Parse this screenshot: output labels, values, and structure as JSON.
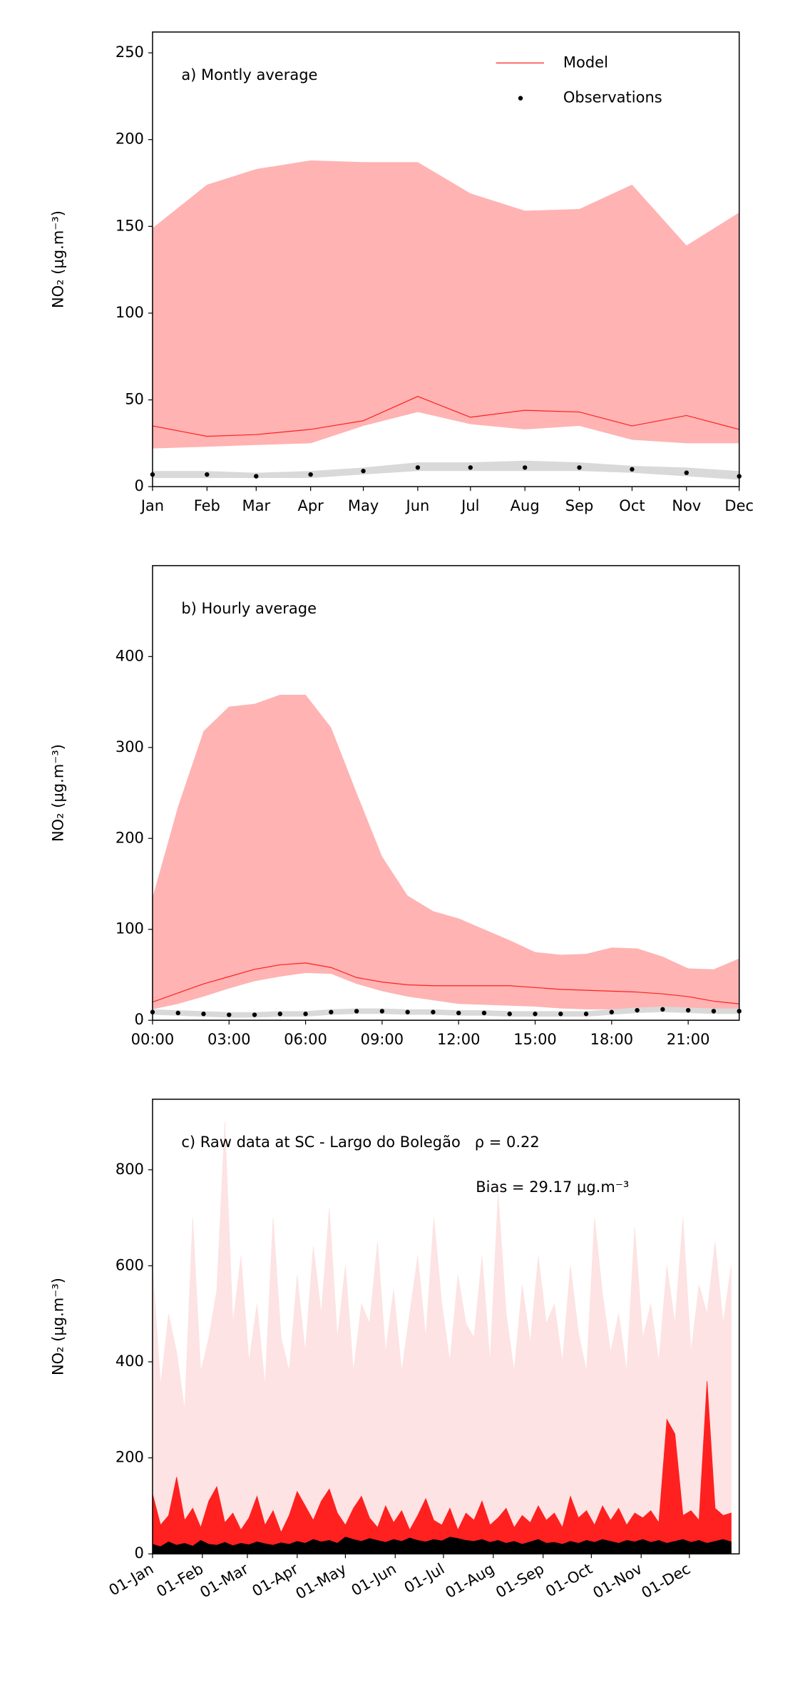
{
  "chart_data": [
    {
      "type": "line",
      "annotations": [
        "a) Montly average"
      ],
      "ylabel": "NO₂ (μg.m⁻³)",
      "legend": "upper right",
      "x": [
        0,
        31,
        59,
        90,
        120,
        151,
        181,
        212,
        243,
        273,
        304,
        334
      ],
      "xlim": [
        0,
        334
      ],
      "xticks": [
        {
          "value": 0,
          "label": "Jan"
        },
        {
          "value": 31,
          "label": "Feb"
        },
        {
          "value": 59,
          "label": "Mar"
        },
        {
          "value": 90,
          "label": "Apr"
        },
        {
          "value": 120,
          "label": "May"
        },
        {
          "value": 151,
          "label": "Jun"
        },
        {
          "value": 181,
          "label": "Jul"
        },
        {
          "value": 212,
          "label": "Aug"
        },
        {
          "value": 243,
          "label": "Sep"
        },
        {
          "value": 273,
          "label": "Oct"
        },
        {
          "value": 304,
          "label": "Nov"
        },
        {
          "value": 334,
          "label": "Dec"
        }
      ],
      "ylim": [
        0,
        262
      ],
      "yticks": [
        0,
        50,
        100,
        150,
        200,
        250
      ],
      "grid": false,
      "series": [
        {
          "name": "Model",
          "color": "#ff2020",
          "style": "line",
          "band_color": "#ffb3b3",
          "values": [
            35,
            29,
            30,
            33,
            38,
            52,
            40,
            44,
            43,
            35,
            41,
            33
          ],
          "upper": [
            149,
            174,
            183,
            188,
            187,
            187,
            169,
            159,
            160,
            174,
            139,
            158
          ],
          "lower": [
            22,
            23,
            24,
            25,
            35,
            43,
            36,
            33,
            35,
            27,
            25,
            25
          ]
        },
        {
          "name": "Observations",
          "color": "#000000",
          "style": "markers",
          "band_color": "#d9d9d9",
          "values": [
            7,
            7,
            6,
            7,
            9,
            11,
            11,
            11,
            11,
            10,
            8,
            6
          ],
          "upper": [
            9,
            9,
            8,
            9,
            11,
            14,
            14,
            15,
            14,
            12,
            11,
            9
          ],
          "lower": [
            5,
            5,
            5,
            5,
            7,
            9,
            9,
            9,
            9,
            8,
            6,
            4
          ]
        }
      ]
    },
    {
      "type": "line",
      "annotations": [
        "b) Hourly average"
      ],
      "ylabel": "NO₂ (μg.m⁻³)",
      "x": [
        0,
        1,
        2,
        3,
        4,
        5,
        6,
        7,
        8,
        9,
        10,
        11,
        12,
        13,
        14,
        15,
        16,
        17,
        18,
        19,
        20,
        21,
        22,
        23
      ],
      "xlim": [
        0,
        23
      ],
      "xticks": [
        {
          "value": 0,
          "label": "00:00"
        },
        {
          "value": 3,
          "label": "03:00"
        },
        {
          "value": 6,
          "label": "06:00"
        },
        {
          "value": 9,
          "label": "09:00"
        },
        {
          "value": 12,
          "label": "12:00"
        },
        {
          "value": 15,
          "label": "15:00"
        },
        {
          "value": 18,
          "label": "18:00"
        },
        {
          "value": 21,
          "label": "21:00"
        }
      ],
      "ylim": [
        0,
        500
      ],
      "yticks": [
        0,
        100,
        200,
        300,
        400
      ],
      "grid": false,
      "series": [
        {
          "color": "#ff2020",
          "style": "line",
          "band_color": "#ffb3b3",
          "values": [
            20,
            30,
            40,
            48,
            56,
            61,
            63,
            58,
            47,
            42,
            39,
            38,
            38,
            38,
            38,
            36,
            34,
            33,
            32,
            31,
            29,
            26,
            21,
            18
          ],
          "upper": [
            135,
            235,
            318,
            345,
            348,
            358,
            358,
            322,
            250,
            180,
            137,
            120,
            112,
            100,
            88,
            75,
            72,
            73,
            80,
            79,
            70,
            57,
            56,
            68
          ],
          "lower": [
            12,
            18,
            26,
            35,
            43,
            48,
            52,
            51,
            40,
            32,
            26,
            22,
            18,
            17,
            16,
            15,
            13,
            12,
            12,
            13,
            13,
            12,
            11,
            10
          ]
        },
        {
          "color": "#000000",
          "style": "markers",
          "band_color": "#d9d9d9",
          "values": [
            9,
            8,
            7,
            6,
            6,
            7,
            7,
            9,
            10,
            10,
            9,
            9,
            8,
            8,
            7,
            7,
            7,
            7,
            9,
            11,
            12,
            11,
            10,
            10
          ],
          "upper": [
            12,
            11,
            10,
            9,
            9,
            10,
            10,
            12,
            13,
            13,
            12,
            12,
            11,
            11,
            10,
            10,
            10,
            10,
            12,
            14,
            15,
            14,
            13,
            13
          ],
          "lower": [
            6,
            5,
            4,
            3,
            3,
            4,
            4,
            6,
            7,
            7,
            6,
            6,
            5,
            5,
            4,
            4,
            4,
            4,
            6,
            8,
            9,
            8,
            7,
            7
          ]
        }
      ]
    },
    {
      "type": "line",
      "annotations": [
        "c) Raw data at SC - Largo do Bolegão",
        "ρ = 0.22",
        "Bias = 29.17 μg.m⁻³"
      ],
      "ylabel": "NO₂ (μg.m⁻³)",
      "x": [
        0,
        5,
        10,
        15,
        20,
        25,
        30,
        35,
        40,
        45,
        50,
        55,
        60,
        65,
        70,
        75,
        80,
        85,
        90,
        95,
        100,
        105,
        110,
        115,
        120,
        125,
        130,
        135,
        140,
        145,
        150,
        155,
        160,
        165,
        170,
        175,
        180,
        185,
        190,
        195,
        200,
        205,
        210,
        215,
        220,
        225,
        230,
        235,
        240,
        245,
        250,
        255,
        260,
        265,
        270,
        275,
        280,
        285,
        290,
        295,
        300,
        305,
        310,
        315,
        320,
        325,
        330,
        335,
        340,
        345,
        350,
        355,
        360
      ],
      "xlim": [
        0,
        365
      ],
      "xticks": [
        {
          "value": 0,
          "label": "01-Jan"
        },
        {
          "value": 31,
          "label": "01-Feb"
        },
        {
          "value": 59,
          "label": "01-Mar"
        },
        {
          "value": 90,
          "label": "01-Apr"
        },
        {
          "value": 120,
          "label": "01-May"
        },
        {
          "value": 151,
          "label": "01-Jun"
        },
        {
          "value": 181,
          "label": "01-Jul"
        },
        {
          "value": 212,
          "label": "01-Aug"
        },
        {
          "value": 243,
          "label": "01-Sep"
        },
        {
          "value": 273,
          "label": "01-Oct"
        },
        {
          "value": 304,
          "label": "01-Nov"
        },
        {
          "value": 334,
          "label": "01-Dec"
        }
      ],
      "ylim": [
        0,
        947
      ],
      "yticks": [
        0,
        200,
        400,
        600,
        800
      ],
      "grid": false,
      "series": [
        {
          "color": "#fde3e3",
          "style": "area",
          "values": [
            600,
            350,
            500,
            420,
            300,
            700,
            380,
            450,
            550,
            900,
            480,
            620,
            400,
            520,
            350,
            700,
            450,
            380,
            580,
            420,
            640,
            500,
            720,
            450,
            600,
            380,
            520,
            480,
            650,
            420,
            550,
            380,
            500,
            620,
            450,
            700,
            520,
            400,
            580,
            480,
            450,
            620,
            400,
            750,
            500,
            380,
            560,
            440,
            620,
            480,
            520,
            400,
            600,
            460,
            380,
            700,
            540,
            420,
            500,
            380,
            680,
            450,
            520,
            400,
            600,
            480,
            700,
            420,
            560,
            500,
            650,
            480,
            600
          ]
        },
        {
          "color": "#ff2020",
          "style": "area",
          "values": [
            125,
            60,
            80,
            160,
            70,
            95,
            55,
            110,
            140,
            65,
            85,
            50,
            75,
            120,
            60,
            90,
            45,
            80,
            130,
            100,
            70,
            110,
            135,
            85,
            60,
            95,
            120,
            75,
            55,
            100,
            65,
            90,
            50,
            80,
            115,
            70,
            60,
            95,
            50,
            85,
            70,
            110,
            60,
            75,
            95,
            55,
            80,
            65,
            100,
            70,
            85,
            55,
            120,
            75,
            90,
            60,
            100,
            70,
            95,
            60,
            85,
            75,
            90,
            65,
            280,
            250,
            80,
            90,
            70,
            360,
            95,
            80,
            85
          ]
        },
        {
          "color": "#000000",
          "style": "area",
          "values": [
            20,
            15,
            25,
            18,
            22,
            16,
            28,
            20,
            18,
            24,
            17,
            22,
            19,
            25,
            21,
            18,
            23,
            20,
            26,
            22,
            30,
            25,
            28,
            22,
            35,
            30,
            26,
            32,
            28,
            24,
            30,
            26,
            33,
            28,
            25,
            30,
            27,
            35,
            32,
            28,
            26,
            30,
            24,
            28,
            22,
            26,
            20,
            25,
            30,
            22,
            24,
            20,
            26,
            22,
            28,
            24,
            30,
            26,
            22,
            28,
            25,
            30,
            24,
            28,
            22,
            26,
            30,
            24,
            28,
            22,
            26,
            30,
            25
          ]
        }
      ]
    }
  ]
}
